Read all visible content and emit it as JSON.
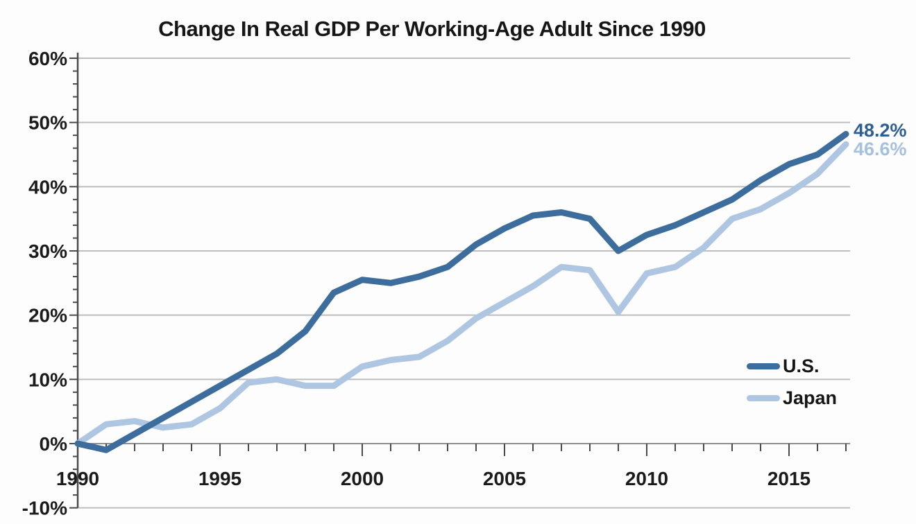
{
  "chart_data": {
    "type": "line",
    "title": "Change In Real GDP Per Working-Age Adult Since 1990",
    "x": [
      1990,
      1991,
      1992,
      1993,
      1994,
      1995,
      1996,
      1997,
      1998,
      1999,
      2000,
      2001,
      2002,
      2003,
      2004,
      2005,
      2006,
      2007,
      2008,
      2009,
      2010,
      2011,
      2012,
      2013,
      2014,
      2015,
      2016,
      2017
    ],
    "series": [
      {
        "name": "U.S.",
        "color": "#3c6d9c",
        "label_color": "#2d5e94",
        "end_label": "48.2%",
        "values": [
          0,
          -1,
          1.5,
          4,
          6.5,
          9,
          11.5,
          14,
          17.5,
          23.5,
          25.5,
          25,
          26,
          27.5,
          31,
          33.5,
          35.5,
          36,
          35,
          30,
          32.5,
          34,
          36,
          38,
          41,
          43.5,
          45,
          48.2
        ]
      },
      {
        "name": "Japan",
        "color": "#aec6e2",
        "label_color": "#a6c1e0",
        "end_label": "46.6%",
        "values": [
          0,
          3,
          3.5,
          2.5,
          3,
          5.5,
          9.5,
          10,
          9,
          9,
          12,
          13,
          13.5,
          16,
          19.5,
          22,
          24.5,
          27.5,
          27,
          20.5,
          26.5,
          27.5,
          30.5,
          35,
          36.5,
          39,
          42,
          46.6
        ]
      }
    ],
    "y_axis": {
      "min": -10,
      "max": 60,
      "major_step": 10,
      "minor_step": 2,
      "tick_values": [
        60,
        50,
        40,
        30,
        20,
        10,
        0,
        -10
      ],
      "tick_labels": [
        "60%",
        "50%",
        "40%",
        "30%",
        "20%",
        "10%",
        "0%",
        "-10%"
      ]
    },
    "x_axis": {
      "major_ticks": [
        1990,
        1995,
        2000,
        2005,
        2010,
        2015
      ],
      "tick_labels": [
        "1990",
        "1995",
        "2000",
        "2005",
        "2010",
        "2015"
      ]
    },
    "legend": {
      "entries": [
        "U.S.",
        "Japan"
      ],
      "position": "right-middle"
    },
    "grid": true,
    "ylim": [
      -10,
      60
    ],
    "colors": {
      "text": "#1b1b1b",
      "gridline": "#bdbdbd",
      "zero_axis": "#8f8f8f",
      "tick": "#4a4a4a",
      "background": "#ffffff"
    }
  }
}
